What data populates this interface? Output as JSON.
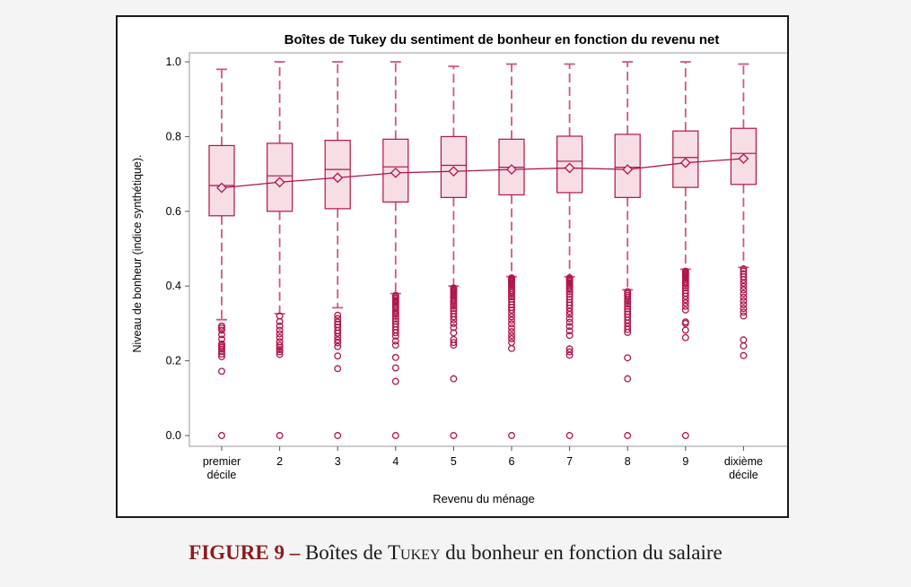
{
  "colors": {
    "accent": "#b0154a",
    "box_fill": "#f7dde4",
    "whisker": "#d0577e",
    "caption_accent": "#8b1c1c"
  },
  "caption": {
    "prefix": "FIGURE 9 –",
    "text_before": "Boîtes de",
    "name": "Tukey",
    "text_after": "du bonheur en fonction du salaire"
  },
  "chart_data": {
    "type": "boxplot",
    "title": "Boîtes de Tukey du sentiment de bonheur en fonction du revenu net",
    "xlabel": "Revenu du ménage",
    "ylabel": "Niveau de bonheur (indice synthétique).",
    "ylim": [
      0.0,
      1.0
    ],
    "yticks": [
      "0.0",
      "0.2",
      "0.4",
      "0.6",
      "0.8",
      "1.0"
    ],
    "categories": [
      [
        "premier",
        "décile"
      ],
      [
        "2"
      ],
      [
        "3"
      ],
      [
        "4"
      ],
      [
        "5"
      ],
      [
        "6"
      ],
      [
        "7"
      ],
      [
        "8"
      ],
      [
        "9"
      ],
      [
        "dixième",
        "décile"
      ]
    ],
    "grid": false,
    "mean_marker": "diamond",
    "mean_line": true,
    "boxes": [
      {
        "q1": 0.588,
        "median": 0.669,
        "q3": 0.776,
        "mean": 0.663,
        "whisker_low": 0.31,
        "whisker_high": 0.98,
        "outliers": [
          0.293,
          0.288,
          0.282,
          0.27,
          0.258,
          0.245,
          0.24,
          0.236,
          0.231,
          0.225,
          0.218,
          0.211,
          0.172,
          0.0
        ]
      },
      {
        "q1": 0.6,
        "median": 0.695,
        "q3": 0.782,
        "mean": 0.678,
        "whisker_low": 0.326,
        "whisker_high": 1.0,
        "outliers": [
          0.32,
          0.305,
          0.293,
          0.282,
          0.272,
          0.262,
          0.251,
          0.242,
          0.236,
          0.23,
          0.224,
          0.217,
          0.0
        ]
      },
      {
        "q1": 0.607,
        "median": 0.712,
        "q3": 0.79,
        "mean": 0.69,
        "whisker_low": 0.342,
        "whisker_high": 1.0,
        "outliers": [
          0.322,
          0.313,
          0.304,
          0.297,
          0.29,
          0.281,
          0.274,
          0.265,
          0.256,
          0.248,
          0.238,
          0.213,
          0.179,
          0.0
        ]
      },
      {
        "q1": 0.625,
        "median": 0.719,
        "q3": 0.793,
        "mean": 0.703,
        "whisker_low": 0.38,
        "whisker_high": 1.0,
        "outliers": [
          0.375,
          0.372,
          0.368,
          0.364,
          0.36,
          0.356,
          0.352,
          0.347,
          0.342,
          0.336,
          0.33,
          0.325,
          0.319,
          0.312,
          0.306,
          0.299,
          0.291,
          0.283,
          0.275,
          0.266,
          0.253,
          0.242,
          0.209,
          0.181,
          0.145,
          0.0
        ]
      },
      {
        "q1": 0.637,
        "median": 0.723,
        "q3": 0.8,
        "mean": 0.707,
        "whisker_low": 0.4,
        "whisker_high": 0.988,
        "outliers": [
          0.395,
          0.392,
          0.389,
          0.386,
          0.383,
          0.38,
          0.376,
          0.372,
          0.368,
          0.363,
          0.358,
          0.352,
          0.346,
          0.34,
          0.334,
          0.326,
          0.318,
          0.31,
          0.3,
          0.289,
          0.275,
          0.257,
          0.249,
          0.242,
          0.152,
          0.0
        ]
      },
      {
        "q1": 0.644,
        "median": 0.718,
        "q3": 0.793,
        "mean": 0.712,
        "whisker_low": 0.425,
        "whisker_high": 0.994,
        "outliers": [
          0.422,
          0.419,
          0.416,
          0.413,
          0.41,
          0.406,
          0.402,
          0.398,
          0.393,
          0.388,
          0.383,
          0.377,
          0.371,
          0.365,
          0.358,
          0.35,
          0.343,
          0.336,
          0.327,
          0.318,
          0.309,
          0.299,
          0.288,
          0.278,
          0.268,
          0.259,
          0.249,
          0.233,
          0.0
        ]
      },
      {
        "q1": 0.65,
        "median": 0.734,
        "q3": 0.801,
        "mean": 0.716,
        "whisker_low": 0.425,
        "whisker_high": 0.994,
        "outliers": [
          0.422,
          0.419,
          0.416,
          0.413,
          0.409,
          0.405,
          0.401,
          0.396,
          0.391,
          0.385,
          0.378,
          0.371,
          0.364,
          0.356,
          0.349,
          0.341,
          0.332,
          0.324,
          0.313,
          0.303,
          0.292,
          0.28,
          0.268,
          0.232,
          0.224,
          0.215,
          0.0
        ]
      },
      {
        "q1": 0.637,
        "median": 0.718,
        "q3": 0.806,
        "mean": 0.712,
        "whisker_low": 0.39,
        "whisker_high": 1.0,
        "outliers": [
          0.385,
          0.38,
          0.375,
          0.37,
          0.364,
          0.358,
          0.352,
          0.346,
          0.339,
          0.332,
          0.325,
          0.317,
          0.309,
          0.301,
          0.292,
          0.284,
          0.276,
          0.208,
          0.152,
          0.0
        ]
      },
      {
        "q1": 0.664,
        "median": 0.744,
        "q3": 0.815,
        "mean": 0.73,
        "whisker_low": 0.445,
        "whisker_high": 1.0,
        "outliers": [
          0.44,
          0.437,
          0.434,
          0.431,
          0.428,
          0.425,
          0.421,
          0.417,
          0.412,
          0.407,
          0.401,
          0.395,
          0.388,
          0.381,
          0.373,
          0.364,
          0.355,
          0.346,
          0.336,
          0.304,
          0.3,
          0.282,
          0.262,
          0.0
        ]
      },
      {
        "q1": 0.672,
        "median": 0.755,
        "q3": 0.822,
        "mean": 0.741,
        "whisker_low": 0.45,
        "whisker_high": 0.994,
        "outliers": [
          0.446,
          0.44,
          0.433,
          0.425,
          0.417,
          0.408,
          0.399,
          0.39,
          0.38,
          0.37,
          0.36,
          0.35,
          0.34,
          0.33,
          0.32,
          0.256,
          0.24,
          0.214
        ]
      }
    ]
  }
}
